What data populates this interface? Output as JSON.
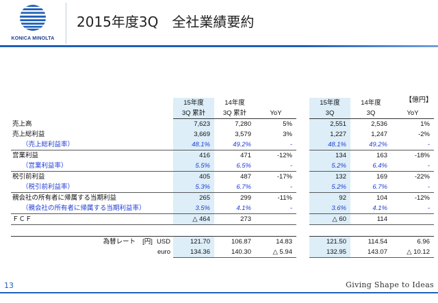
{
  "brand": {
    "name": "KONICA MINOLTA",
    "color": "#1f5fb8",
    "logo_icon": "globe-logo-icon"
  },
  "title": {
    "part1": "2015年度3Q",
    "part2": "全社業績要約"
  },
  "unit": "【億円】",
  "header": {
    "row1": [
      "15年度",
      "14年度",
      "",
      "15年度",
      "14年度",
      ""
    ],
    "row2": [
      "3Q 累計",
      "3Q 累計",
      "YoY",
      "3Q",
      "3Q",
      "YoY"
    ]
  },
  "rows": [
    {
      "label": "売上高",
      "values": [
        "7,623",
        "7,280",
        "5%",
        "2,551",
        "2,536",
        "1%"
      ]
    },
    {
      "label": "売上総利益",
      "values": [
        "3,669",
        "3,579",
        "3%",
        "1,227",
        "1,247",
        "-2%"
      ]
    },
    {
      "label": "（売上総利益率）",
      "values": [
        "48.1%",
        "49.2%",
        "-",
        "48.1%",
        "49.2%",
        "-"
      ]
    },
    {
      "label": "営業利益",
      "values": [
        "416",
        "471",
        "-12%",
        "134",
        "163",
        "-18%"
      ]
    },
    {
      "label": "（営業利益率）",
      "values": [
        "5.5%",
        "6.5%",
        "-",
        "5.2%",
        "6.4%",
        "-"
      ]
    },
    {
      "label": "税引前利益",
      "values": [
        "405",
        "487",
        "-17%",
        "132",
        "169",
        "-22%"
      ]
    },
    {
      "label": "（税引前利益率）",
      "values": [
        "5.3%",
        "6.7%",
        "-",
        "5.2%",
        "6.7%",
        "-"
      ]
    },
    {
      "label": "親会社の所有者に帰属する当期利益",
      "values": [
        "265",
        "299",
        "-11%",
        "92",
        "104",
        "-12%"
      ]
    },
    {
      "label": "（親会社の所有者に帰属する当期利益率）",
      "values": [
        "3.5%",
        "4.1%",
        "-",
        "3.6%",
        "4.1%",
        "-"
      ]
    },
    {
      "label": "ＦＣＦ",
      "values": [
        "△ 464",
        "273",
        "",
        "△ 60",
        "114",
        ""
      ]
    }
  ],
  "fx": {
    "label": "為替レート",
    "unit": "[円]",
    "usd": {
      "label": "USD",
      "values": [
        "121.70",
        "106.87",
        "14.83",
        "121.50",
        "114.54",
        "6.96"
      ]
    },
    "euro": {
      "label": "euro",
      "values": [
        "134.36",
        "140.30",
        "△ 5.94",
        "132.95",
        "143.07",
        "△ 10.12"
      ]
    }
  },
  "footer": {
    "page": "13",
    "tagline": "Giving Shape to Ideas"
  }
}
